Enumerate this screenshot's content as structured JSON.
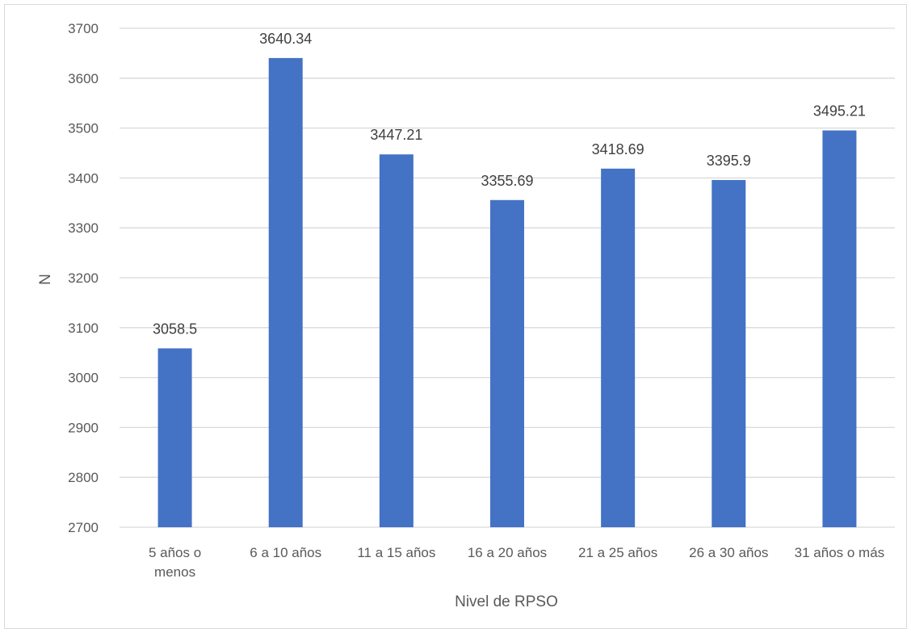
{
  "chart_data": {
    "type": "bar",
    "title": "",
    "xlabel": "Nivel de RPSO",
    "ylabel": "N",
    "ylim": [
      2700,
      3700
    ],
    "ytick_step": 100,
    "grid": true,
    "bar_color": "#4472c4",
    "grid_color": "#d9d9d9",
    "categories": [
      [
        "5 años o",
        "menos"
      ],
      [
        "6 a 10 años"
      ],
      [
        "11 a 15 años"
      ],
      [
        "16 a 20 años"
      ],
      [
        "21 a 25 años"
      ],
      [
        "26 a 30 años"
      ],
      [
        "31 años o más"
      ]
    ],
    "values": [
      3058.5,
      3640.34,
      3447.21,
      3355.69,
      3418.69,
      3395.9,
      3495.21
    ],
    "data_labels": [
      "3058.5",
      "3640.34",
      "3447.21",
      "3355.69",
      "3418.69",
      "3395.9",
      "3495.21"
    ]
  }
}
